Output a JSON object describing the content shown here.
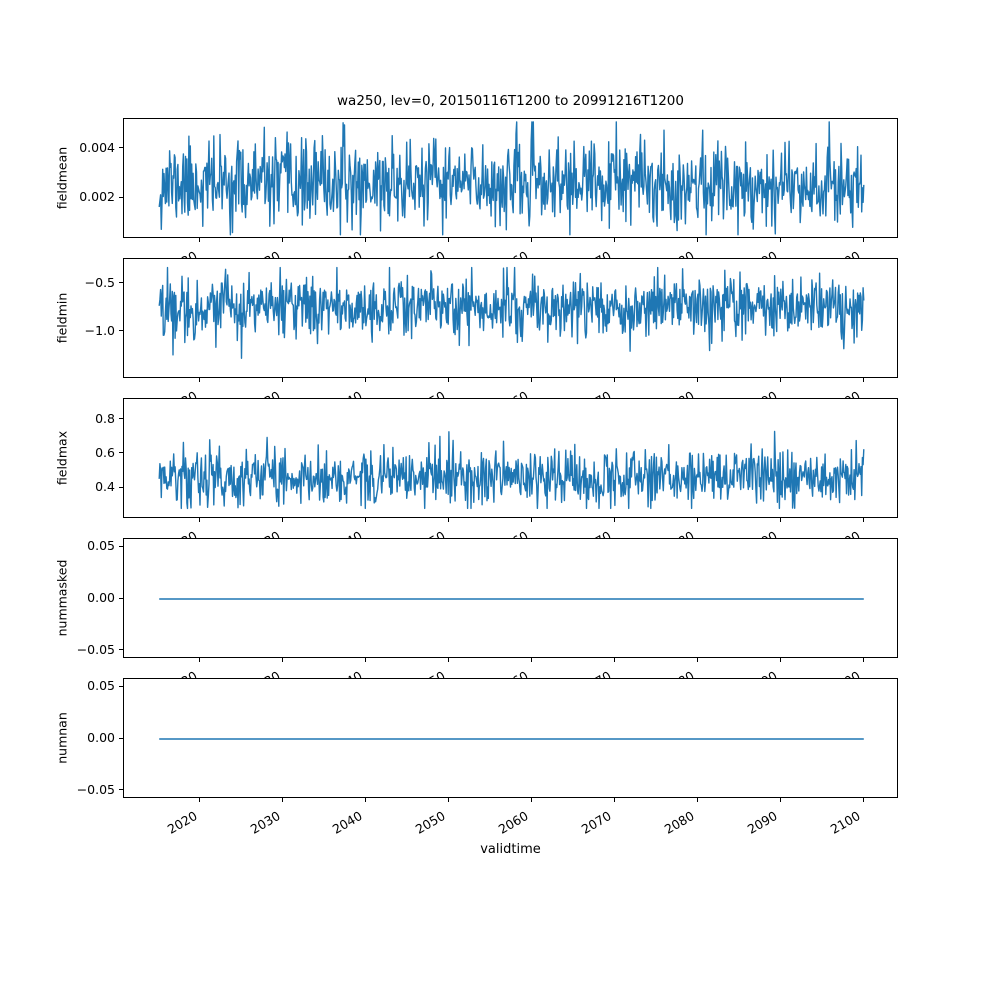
{
  "figure": {
    "title": "wa250, lev=0, 20150116T1200 to 20991216T1200",
    "xlabel": "validtime",
    "line_color": "#1f77b4",
    "background": "#ffffff",
    "axes_color": "#000000"
  },
  "chart_data": [
    {
      "type": "line",
      "ylabel": "fieldmean",
      "x_start": 2015.0417,
      "x_step": 0.0833333,
      "n_points": 1020,
      "x_lim": [
        2010.8,
        2104.2
      ],
      "x_ticks": [
        2020,
        2030,
        2040,
        2050,
        2060,
        2070,
        2080,
        2090,
        2100
      ],
      "x_tick_labels": [
        "2020",
        "2030",
        "2040",
        "2050",
        "2060",
        "2070",
        "2080",
        "2090",
        "2100"
      ],
      "y_lim": [
        0.00033,
        0.00522
      ],
      "y_ticks": [
        0.002,
        0.004
      ],
      "y_tick_labels": [
        "0.002",
        "0.004"
      ],
      "grid": false,
      "legend": false,
      "series": [
        {
          "name": "fieldmean",
          "style": "noisy",
          "mean": 0.0026,
          "std": 0.00085,
          "clip_min": 0.0005,
          "clip_max": 0.0051,
          "seed": 11
        }
      ]
    },
    {
      "type": "line",
      "ylabel": "fieldmin",
      "x_start": 2015.0417,
      "x_step": 0.0833333,
      "n_points": 1020,
      "x_lim": [
        2010.8,
        2104.2
      ],
      "x_ticks": [
        2020,
        2030,
        2040,
        2050,
        2060,
        2070,
        2080,
        2090,
        2100
      ],
      "x_tick_labels": [
        "2020",
        "2030",
        "2040",
        "2050",
        "2060",
        "2070",
        "2080",
        "2090",
        "2100"
      ],
      "y_lim": [
        -1.49,
        -0.24
      ],
      "y_ticks": [
        -0.5,
        -1.0
      ],
      "y_tick_labels": [
        "−0.5",
        "−1.0"
      ],
      "grid": false,
      "legend": false,
      "series": [
        {
          "name": "fieldmin",
          "style": "noisy",
          "mean": -0.74,
          "std": 0.16,
          "clip_min": -1.42,
          "clip_max": -0.33,
          "seed": 22
        }
      ]
    },
    {
      "type": "line",
      "ylabel": "fieldmax",
      "x_start": 2015.0417,
      "x_step": 0.0833333,
      "n_points": 1020,
      "x_lim": [
        2010.8,
        2104.2
      ],
      "x_ticks": [
        2020,
        2030,
        2040,
        2050,
        2060,
        2070,
        2080,
        2090,
        2100
      ],
      "x_tick_labels": [
        "2020",
        "2030",
        "2040",
        "2050",
        "2060",
        "2070",
        "2080",
        "2090",
        "2100"
      ],
      "y_lim": [
        0.218,
        0.923
      ],
      "y_ticks": [
        0.8,
        0.6,
        0.4
      ],
      "y_tick_labels": [
        "0.8",
        "0.6",
        "0.4"
      ],
      "grid": false,
      "legend": false,
      "series": [
        {
          "name": "fieldmax",
          "style": "noisy",
          "mean": 0.46,
          "std": 0.085,
          "clip_min": 0.28,
          "clip_max": 0.87,
          "seed": 33
        }
      ]
    },
    {
      "type": "line",
      "ylabel": "nummasked",
      "x_start": 2015.0417,
      "x_step": 0.0833333,
      "n_points": 1020,
      "x_lim": [
        2010.8,
        2104.2
      ],
      "x_ticks": [
        2020,
        2030,
        2040,
        2050,
        2060,
        2070,
        2080,
        2090,
        2100
      ],
      "x_tick_labels": [
        "2020",
        "2030",
        "2040",
        "2050",
        "2060",
        "2070",
        "2080",
        "2090",
        "2100"
      ],
      "y_lim": [
        -0.0577,
        0.0577
      ],
      "y_ticks": [
        0.05,
        0.0,
        -0.05
      ],
      "y_tick_labels": [
        "0.05",
        "0.00",
        "−0.05"
      ],
      "grid": false,
      "legend": false,
      "series": [
        {
          "name": "nummasked",
          "style": "constant",
          "mean": 0.0,
          "std": 0,
          "clip_min": 0,
          "clip_max": 0,
          "seed": 44
        }
      ]
    },
    {
      "type": "line",
      "ylabel": "numnan",
      "x_start": 2015.0417,
      "x_step": 0.0833333,
      "n_points": 1020,
      "x_lim": [
        2010.8,
        2104.2
      ],
      "x_ticks": [
        2020,
        2030,
        2040,
        2050,
        2060,
        2070,
        2080,
        2090,
        2100
      ],
      "x_tick_labels": [
        "2020",
        "2030",
        "2040",
        "2050",
        "2060",
        "2070",
        "2080",
        "2090",
        "2100"
      ],
      "y_lim": [
        -0.0577,
        0.0577
      ],
      "y_ticks": [
        0.05,
        0.0,
        -0.05
      ],
      "y_tick_labels": [
        "0.05",
        "0.00",
        "−0.05"
      ],
      "grid": false,
      "legend": false,
      "series": [
        {
          "name": "numnan",
          "style": "constant",
          "mean": 0.0,
          "std": 0,
          "clip_min": 0,
          "clip_max": 0,
          "seed": 55
        }
      ]
    }
  ]
}
